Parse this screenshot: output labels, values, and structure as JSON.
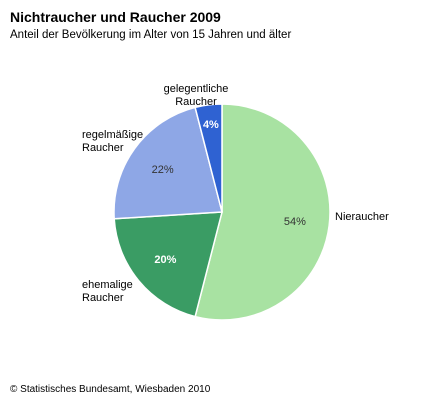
{
  "header": {
    "title": "Nichtraucher und Raucher 2009",
    "subtitle": "Anteil der Bevölkerung im Alter von 15 Jahren und älter"
  },
  "chart_data": {
    "type": "pie",
    "title": "Nichtraucher und Raucher 2009",
    "subtitle": "Anteil der Bevölkerung im Alter von 15 Jahren und älter",
    "slices": [
      {
        "label": "Nieraucher",
        "label_lines": [
          "Nieraucher"
        ],
        "value": 54,
        "value_label": "54%",
        "color": "#a8e2a2",
        "value_text_color": "#333333",
        "value_bold": false
      },
      {
        "label": "ehemalige Raucher",
        "label_lines": [
          "ehemalige",
          "Raucher"
        ],
        "value": 20,
        "value_label": "20%",
        "color": "#3a9c64",
        "value_text_color": "#ffffff",
        "value_bold": true
      },
      {
        "label": "regelmäßige Raucher",
        "label_lines": [
          "regelmäßige",
          "Raucher"
        ],
        "value": 22,
        "value_label": "22%",
        "color": "#8ea7e6",
        "value_text_color": "#333333",
        "value_bold": false
      },
      {
        "label": "gelegentliche Raucher",
        "label_lines": [
          "gelegentliche",
          "Raucher"
        ],
        "value": 4,
        "value_label": "4%",
        "color": "#2f62d2",
        "value_text_color": "#ffffff",
        "value_bold": true
      }
    ],
    "legend": "none"
  },
  "footer": {
    "source": "© Statistisches Bundesamt, Wiesbaden 2010"
  }
}
